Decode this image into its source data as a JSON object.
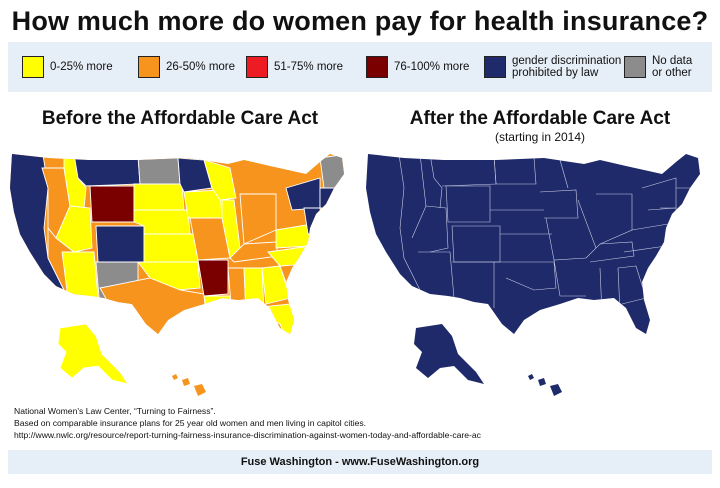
{
  "title": "How much more do women pay for health insurance?",
  "legend": [
    {
      "label": "0-25% more",
      "color": "#ffff00"
    },
    {
      "label": "26-50% more",
      "color": "#f7941d"
    },
    {
      "label": "51-75% more",
      "color": "#ed1c24"
    },
    {
      "label": "76-100% more",
      "color": "#7a0000"
    },
    {
      "label": "gender discrimination prohibited by law",
      "color": "#1f2a6b"
    },
    {
      "label": "No data or other",
      "color": "#8c8c8c"
    }
  ],
  "maps": {
    "before": {
      "title": "Before the Affordable Care Act"
    },
    "after": {
      "title": "After the Affordable Care Act",
      "subtitle": "(starting in 2014)"
    }
  },
  "source_lines": [
    "National Women's Law Center, “Turning to Fairness”.",
    "Based on comparable insurance plans for 25 year old women and men living in capitol cities.",
    "http://www.nwlc.org/resource/report-turning-fairness-insurance-discrimination-against-women-today-and-affordable-care-ac"
  ],
  "footer": "Fuse Washington - www.FuseWashington.org"
}
